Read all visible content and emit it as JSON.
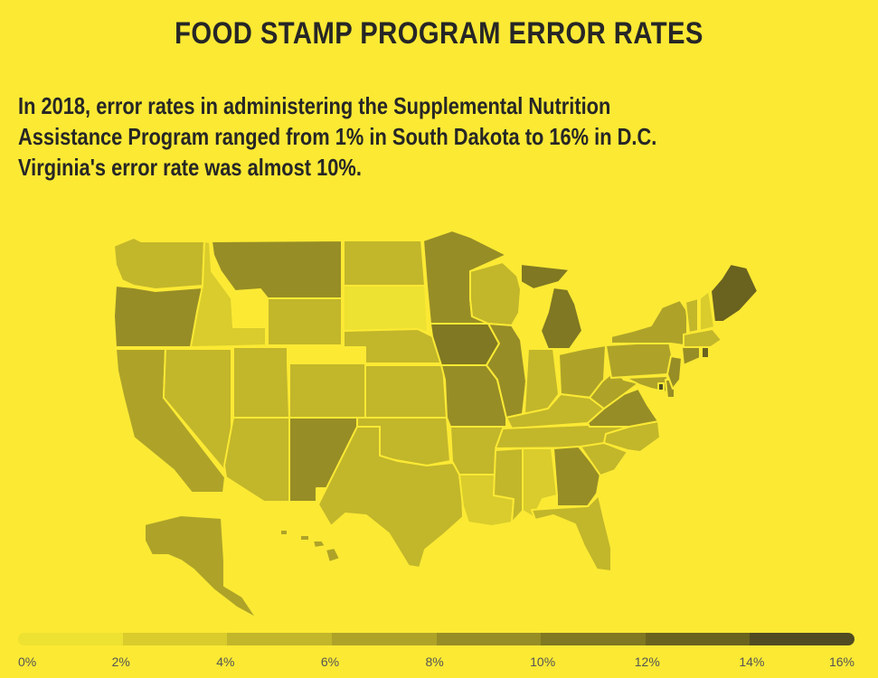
{
  "title": "FOOD STAMP PROGRAM ERROR RATES",
  "subtitle_lines": [
    "In 2018, error rates in administering the Supplemental Nutrition",
    "Assistance Program ranged from 1% in South Dakota to 16% in D.C.",
    "Virginia's error rate was almost 10%."
  ],
  "legend": {
    "labels": [
      "0%",
      "2%",
      "4%",
      "6%",
      "8%",
      "10%",
      "12%",
      "14%",
      "16%"
    ],
    "colors": [
      "#ede131",
      "#d9cc2c",
      "#c2b62a",
      "#aea328",
      "#978d26",
      "#807822",
      "#6a621f",
      "#504b22",
      "#3b3a35"
    ]
  },
  "colors": {
    "background": "#fbe934",
    "text": "#262626",
    "border": "#fbe934"
  },
  "chart_data": {
    "type": "choropleth",
    "title": "FOOD STAMP PROGRAM ERROR RATES",
    "unit": "%",
    "scale": [
      0,
      16
    ],
    "states": [
      {
        "name": "Washington",
        "value": 5.5
      },
      {
        "name": "Oregon",
        "value": 9.5
      },
      {
        "name": "California",
        "value": 6.0
      },
      {
        "name": "Nevada",
        "value": 4.5
      },
      {
        "name": "Idaho",
        "value": 2.5
      },
      {
        "name": "Montana",
        "value": 9.0
      },
      {
        "name": "Wyoming",
        "value": 4.5
      },
      {
        "name": "Utah",
        "value": 4.5
      },
      {
        "name": "Arizona",
        "value": 4.5
      },
      {
        "name": "Colorado",
        "value": 4.5
      },
      {
        "name": "New Mexico",
        "value": 9.0
      },
      {
        "name": "North Dakota",
        "value": 4.5
      },
      {
        "name": "South Dakota",
        "value": 1.0
      },
      {
        "name": "Nebraska",
        "value": 4.5
      },
      {
        "name": "Kansas",
        "value": 4.5
      },
      {
        "name": "Oklahoma",
        "value": 5.5
      },
      {
        "name": "Texas",
        "value": 5.5
      },
      {
        "name": "Minnesota",
        "value": 8.0
      },
      {
        "name": "Iowa",
        "value": 10.0
      },
      {
        "name": "Missouri",
        "value": 9.0
      },
      {
        "name": "Arkansas",
        "value": 5.0
      },
      {
        "name": "Louisiana",
        "value": 3.0
      },
      {
        "name": "Wisconsin",
        "value": 5.5
      },
      {
        "name": "Illinois",
        "value": 8.0
      },
      {
        "name": "Michigan",
        "value": 10.0
      },
      {
        "name": "Indiana",
        "value": 5.5
      },
      {
        "name": "Ohio",
        "value": 7.0
      },
      {
        "name": "Kentucky",
        "value": 5.5
      },
      {
        "name": "Tennessee",
        "value": 4.0
      },
      {
        "name": "Mississippi",
        "value": 4.0
      },
      {
        "name": "Alabama",
        "value": 3.5
      },
      {
        "name": "Georgia",
        "value": 9.0
      },
      {
        "name": "Florida",
        "value": 4.5
      },
      {
        "name": "South Carolina",
        "value": 4.5
      },
      {
        "name": "North Carolina",
        "value": 5.0
      },
      {
        "name": "Virginia",
        "value": 9.8
      },
      {
        "name": "West Virginia",
        "value": 6.5
      },
      {
        "name": "Pennsylvania",
        "value": 7.0
      },
      {
        "name": "New York",
        "value": 6.5
      },
      {
        "name": "Maryland",
        "value": 6.5
      },
      {
        "name": "Delaware",
        "value": 8.0
      },
      {
        "name": "New Jersey",
        "value": 9.0
      },
      {
        "name": "Connecticut",
        "value": 9.5
      },
      {
        "name": "Rhode Island",
        "value": 12.0
      },
      {
        "name": "Massachusetts",
        "value": 5.0
      },
      {
        "name": "Vermont",
        "value": 4.0
      },
      {
        "name": "New Hampshire",
        "value": 3.5
      },
      {
        "name": "Maine",
        "value": 12.5
      },
      {
        "name": "District of Columbia",
        "value": 16.0
      },
      {
        "name": "Alaska",
        "value": 6.0
      },
      {
        "name": "Hawaii",
        "value": 6.5
      }
    ]
  }
}
